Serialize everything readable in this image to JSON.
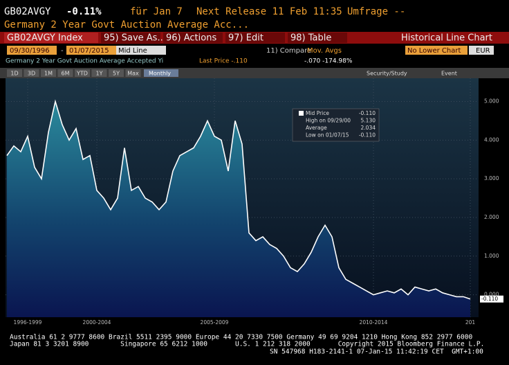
{
  "header": {
    "ticker": "GB02AVGY",
    "change": "-0.11%",
    "date": "für Jan 7",
    "next_release": "Next Release 11 Feb 11:35",
    "survey": "Umfrage --",
    "description": "Germany 2 Year Govt Auction Average Acc..."
  },
  "toolbar": {
    "security": "GB02AVGY Index",
    "buttons": [
      "95) Save As...",
      "96) Actions",
      "97) Edit",
      "98) Table"
    ],
    "view": "Historical Line Chart"
  },
  "settings": {
    "start": "09/30/1996",
    "separator": "-",
    "end": "01/07/2015",
    "mode": "Mid Line",
    "compare": "11) Compare",
    "mov_avgs": "Mov. Avgs",
    "lower_chart": "No Lower Chart",
    "currency": "EUR"
  },
  "info": {
    "name": "Germany 2 Year Govt Auction Average Accepted Yi",
    "last_price": "Last Price -.110",
    "change": "-.070 -174.98%"
  },
  "periods": [
    "1D",
    "3D",
    "1M",
    "6M",
    "YTD",
    "1Y",
    "5Y",
    "Max"
  ],
  "frequency": "Monthly",
  "tools": [
    "Security/Study",
    "Event"
  ],
  "chart_data": {
    "type": "area",
    "categories": [
      null,
      null,
      null,
      "1996-1999",
      null,
      null,
      null,
      null,
      null,
      null,
      null,
      null,
      null,
      "2000-2004",
      null,
      null,
      null,
      null,
      null,
      null,
      null,
      null,
      null,
      null,
      null,
      null,
      null,
      null,
      null,
      null,
      "2005-2009",
      null,
      null,
      null,
      null,
      null,
      null,
      null,
      null,
      null,
      null,
      null,
      null,
      null,
      null,
      null,
      null,
      null,
      null,
      null,
      null,
      null,
      null,
      "2010-2014",
      null,
      null,
      null,
      null,
      null,
      null,
      null,
      null,
      null,
      null,
      null,
      null,
      null,
      "201"
    ],
    "series": [
      {
        "name": "Mid Price",
        "color": "#ffffff",
        "values": [
          3.6,
          3.85,
          3.7,
          4.1,
          3.3,
          3.0,
          4.2,
          5.0,
          4.4,
          4.0,
          4.3,
          3.5,
          3.6,
          2.7,
          2.5,
          2.2,
          2.5,
          3.8,
          2.7,
          2.8,
          2.5,
          2.4,
          2.2,
          2.4,
          3.2,
          3.6,
          3.7,
          3.8,
          4.1,
          4.5,
          4.1,
          4.0,
          3.2,
          4.5,
          3.9,
          1.6,
          1.4,
          1.5,
          1.3,
          1.2,
          1.0,
          0.7,
          0.6,
          0.8,
          1.1,
          1.5,
          1.8,
          1.5,
          0.7,
          0.4,
          0.3,
          0.2,
          0.1,
          0.0,
          0.05,
          0.1,
          0.05,
          0.15,
          0.0,
          0.2,
          0.15,
          0.1,
          0.15,
          0.05,
          0.0,
          -0.05,
          -0.05,
          -0.11
        ]
      }
    ],
    "ylim": [
      -0.58,
      5.6
    ],
    "yticks": [
      {
        "value": 5,
        "label": "5.000"
      },
      {
        "value": 4,
        "label": "4.000"
      },
      {
        "value": 3,
        "label": "3.000"
      },
      {
        "value": 2,
        "label": "2.000"
      },
      {
        "value": 1,
        "label": "1.000"
      },
      {
        "value": 0,
        "label": "0.000"
      }
    ],
    "last_label": "-0.110",
    "legend": [
      {
        "label": "Mid Price",
        "value": "-0.110"
      },
      {
        "label": "High on 09/29/00",
        "value": "5.130"
      },
      {
        "label": "Average",
        "value": "2.034"
      },
      {
        "label": "Low on 01/07/15",
        "value": "-0.110"
      }
    ]
  },
  "footer": [
    "Australia 61 2 9777 8600 Brazil 5511 2395 9000 Europe 44 20 7330 7500 Germany 49 69 9204 1210 Hong Kong 852 2977 6000",
    "Japan 81 3 3201 8900        Singapore 65 6212 1000       U.S. 1 212 318 2000       Copyright 2015 Bloomberg Finance L.P.",
    "SN 547968 H183-2141-1 07-Jan-15 11:42:19 CET  GMT+1:00"
  ]
}
